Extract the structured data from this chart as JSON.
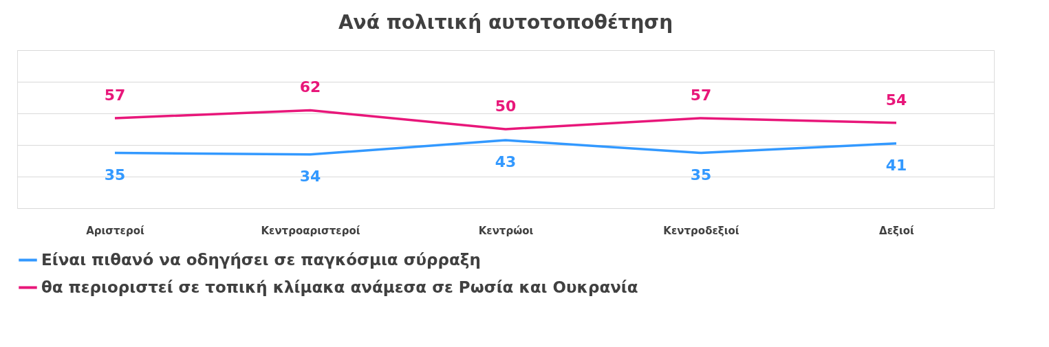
{
  "chart_data": {
    "type": "line",
    "title": "Ανά πολιτική αυτοτοποθέτηση",
    "categories": [
      "Αριστεροί",
      "Κεντροαριστεροί",
      "Κεντρώοι",
      "Κεντροδεξιοί",
      "Δεξιοί"
    ],
    "series": [
      {
        "name": "Είναι πιθανό να οδηγήσει σε παγκόσμια σύρραξη",
        "color": "#3399ff",
        "values": [
          35,
          34,
          43,
          35,
          41
        ]
      },
      {
        "name": "θα περιοριστεί σε τοπική κλίμακα ανάμεσα σε Ρωσία και Ουκρανία",
        "color": "#e8177a",
        "values": [
          57,
          62,
          50,
          57,
          54
        ]
      }
    ],
    "ylim": [
      0,
      100
    ],
    "yticks": [
      {
        "value": 0,
        "label": null
      },
      {
        "value": 20,
        "label": null
      },
      {
        "value": 40,
        "label": null
      },
      {
        "value": 60,
        "label": null
      },
      {
        "value": 80,
        "label": null
      },
      {
        "value": 100,
        "label": null
      }
    ],
    "grid": "y",
    "tick_labels": "x",
    "data_labels": true,
    "legend": "bottom",
    "marker": "none",
    "line_style": "solid"
  }
}
